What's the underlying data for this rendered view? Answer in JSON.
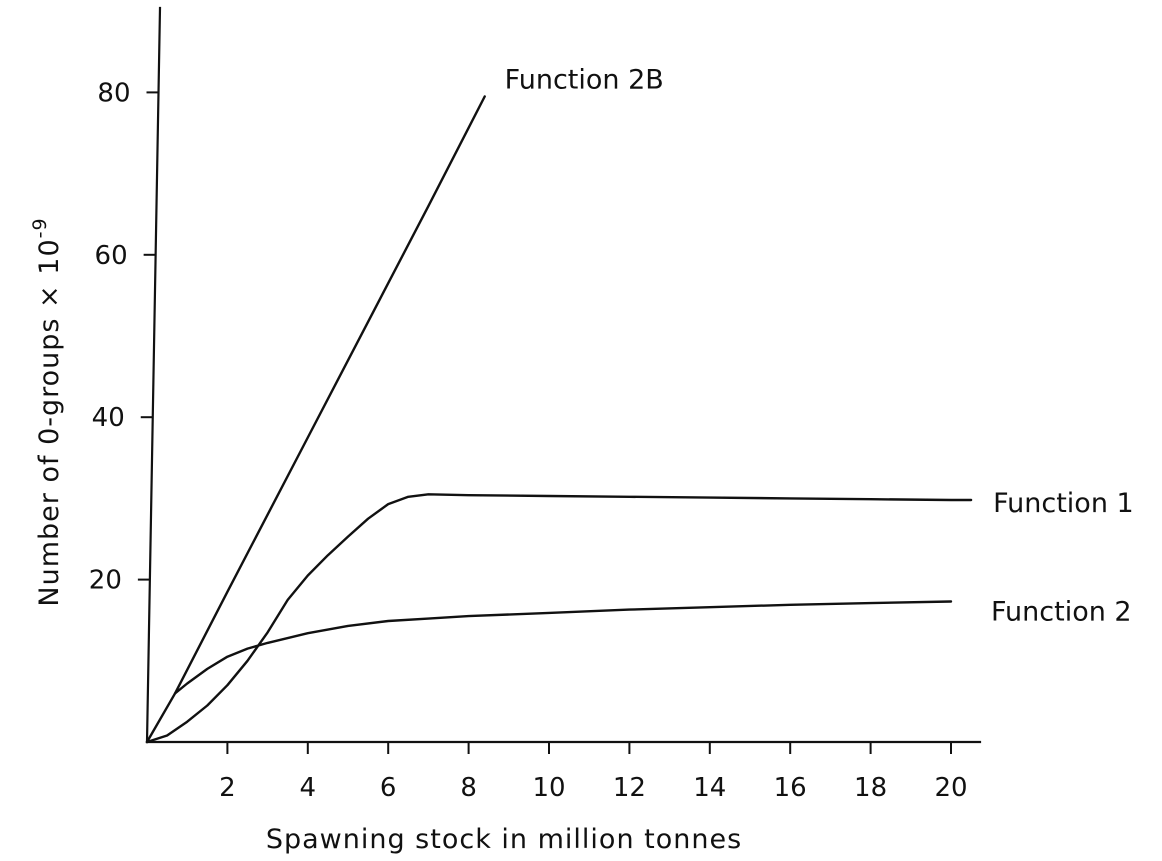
{
  "chart_data": {
    "type": "line",
    "title": "",
    "xlabel": "Spawning stock in million tonnes",
    "ylabel": {
      "main": "Number of 0-groups × 10",
      "exponent": "-9"
    },
    "xlim": [
      0,
      20.5
    ],
    "ylim": [
      0,
      80
    ],
    "x_ticks": [
      "2",
      "4",
      "6",
      "8",
      "10",
      "12",
      "14",
      "16",
      "18",
      "20"
    ],
    "y_ticks": [
      "20",
      "40",
      "60",
      "80"
    ],
    "grid": false,
    "legend": "labels at line ends",
    "series": [
      {
        "name": "Function 2B",
        "x": [
          0,
          0.7,
          2,
          4,
          6,
          7,
          8.4
        ],
        "y": [
          0,
          6,
          18.5,
          37.5,
          56.5,
          66,
          79.5
        ]
      },
      {
        "name": "Function 1",
        "x": [
          0,
          0.5,
          1,
          1.5,
          2,
          2.5,
          3,
          3.5,
          4,
          4.5,
          5,
          5.5,
          6,
          6.5,
          7,
          8,
          10,
          12,
          14,
          16,
          18,
          20,
          20.5
        ],
        "y": [
          0,
          0.8,
          2.5,
          4.5,
          7,
          10,
          13.5,
          17.5,
          20.5,
          23,
          25.3,
          27.5,
          29.3,
          30.2,
          30.5,
          30.4,
          30.3,
          30.2,
          30.1,
          30,
          29.9,
          29.8,
          29.8
        ]
      },
      {
        "name": "Function 2",
        "x": [
          0.7,
          1,
          1.5,
          2,
          2.5,
          3,
          4,
          5,
          6,
          7,
          8,
          10,
          12,
          14,
          16,
          18,
          20
        ],
        "y": [
          6,
          7.2,
          9,
          10.5,
          11.5,
          12.2,
          13.4,
          14.3,
          14.9,
          15.2,
          15.5,
          15.9,
          16.3,
          16.6,
          16.9,
          17.1,
          17.3
        ]
      }
    ]
  }
}
